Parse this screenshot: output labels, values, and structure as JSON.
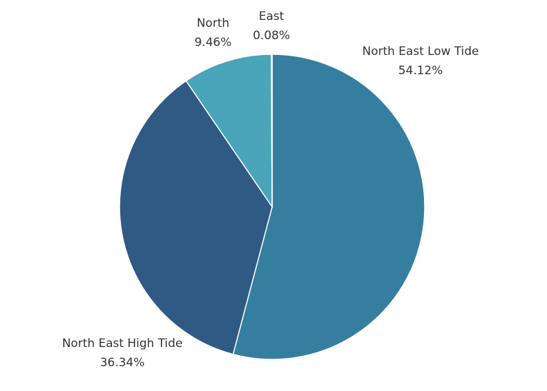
{
  "chart_data": {
    "type": "pie",
    "title": "",
    "slices": [
      {
        "label": "North East Low Tide",
        "value": 54.12,
        "display": "54.12%",
        "color": "#357ea0"
      },
      {
        "label": "North East High Tide",
        "value": 36.34,
        "display": "36.34%",
        "color": "#2e5a84"
      },
      {
        "label": "North",
        "value": 9.46,
        "display": "9.46%",
        "color": "#4aa4ba"
      },
      {
        "label": "East",
        "value": 0.08,
        "display": "0.08%",
        "color": "#74c8d6"
      }
    ],
    "start_angle_deg": 0,
    "direction": "clockwise",
    "legend": "none",
    "labels": "outside"
  }
}
